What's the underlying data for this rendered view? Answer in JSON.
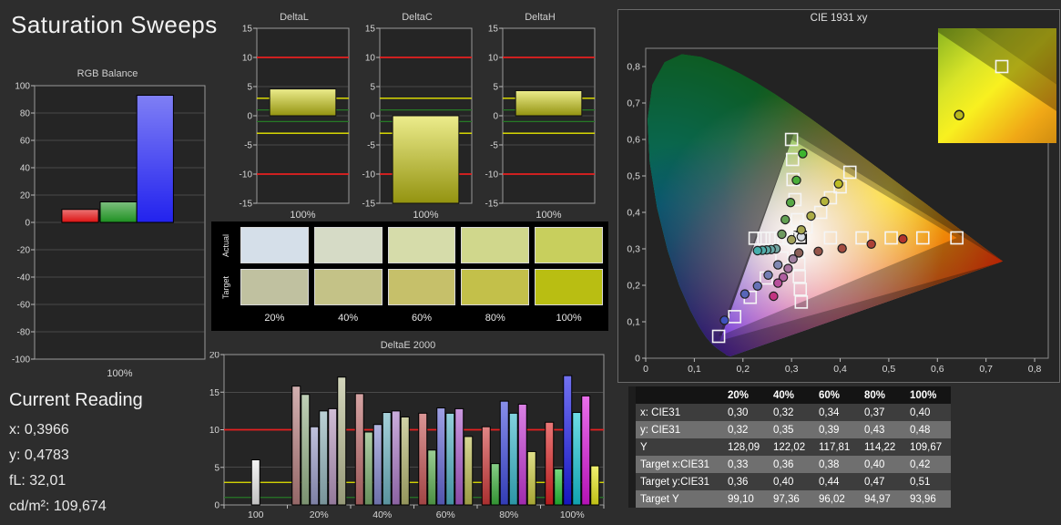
{
  "page": {
    "title": "Saturation Sweeps",
    "background": "#2d2d2d"
  },
  "current_reading": {
    "heading": "Current Reading",
    "lines": [
      "x: 0,3966",
      "y: 0,4783",
      "fL: 32,01",
      "cd/m²: 109,674"
    ]
  },
  "swatches": {
    "row_labels": [
      "Actual",
      "Target"
    ],
    "col_labels": [
      "20%",
      "40%",
      "60%",
      "80%",
      "100%"
    ],
    "actual_colors": [
      "#d5dfe9",
      "#d6dbc6",
      "#d6dcaa",
      "#d0d78c",
      "#c8cf5d"
    ],
    "target_colors": [
      "#c0c1a0",
      "#c4c287",
      "#c6c06a",
      "#c3c04a",
      "#b9be12"
    ]
  },
  "table": {
    "col_headers": [
      "",
      "20%",
      "40%",
      "60%",
      "80%",
      "100%"
    ],
    "rows": [
      {
        "label": "x: CIE31",
        "values": [
          "0,30",
          "0,32",
          "0,34",
          "0,37",
          "0,40"
        ]
      },
      {
        "label": "y: CIE31",
        "values": [
          "0,32",
          "0,35",
          "0,39",
          "0,43",
          "0,48"
        ]
      },
      {
        "label": "Y",
        "values": [
          "128,09",
          "122,02",
          "117,81",
          "114,22",
          "109,67"
        ]
      },
      {
        "label": "Target x:CIE31",
        "values": [
          "0,33",
          "0,36",
          "0,38",
          "0,40",
          "0,42"
        ]
      },
      {
        "label": "Target y:CIE31",
        "values": [
          "0,36",
          "0,40",
          "0,44",
          "0,47",
          "0,51"
        ]
      },
      {
        "label": "Target Y",
        "values": [
          "99,10",
          "97,36",
          "96,02",
          "94,97",
          "93,96"
        ]
      }
    ]
  },
  "chart_data": [
    {
      "type": "bar",
      "title": "RGB Balance",
      "xlabel": "100%",
      "ylim": [
        -100,
        100
      ],
      "ytick_step": 20,
      "categories": [
        "red",
        "green",
        "blue"
      ],
      "values": [
        9.5,
        15,
        93
      ],
      "colors": [
        "#dd1111",
        "#1e9021",
        "#2222ee"
      ]
    },
    {
      "type": "bar",
      "title": "DeltaL",
      "xlabel": "100%",
      "ylim": [
        -15,
        15
      ],
      "ytick_step": 5,
      "categories": [
        "100%"
      ],
      "values": [
        4.6
      ],
      "color": "#d8d818",
      "ref_lines": [
        {
          "y": 10,
          "color": "#e62020"
        },
        {
          "y": -10,
          "color": "#e62020"
        },
        {
          "y": 3,
          "color": "#e8e800"
        },
        {
          "y": -3,
          "color": "#e8e800"
        },
        {
          "y": 1,
          "color": "#267a26"
        },
        {
          "y": -1,
          "color": "#267a26"
        }
      ]
    },
    {
      "type": "bar",
      "title": "DeltaC",
      "xlabel": "100%",
      "ylim": [
        -15,
        15
      ],
      "ytick_step": 5,
      "categories": [
        "100%"
      ],
      "values": [
        -15
      ],
      "color": "#d8d818",
      "ref_lines": [
        {
          "y": 10,
          "color": "#e62020"
        },
        {
          "y": -10,
          "color": "#e62020"
        },
        {
          "y": 3,
          "color": "#e8e800"
        },
        {
          "y": -3,
          "color": "#e8e800"
        },
        {
          "y": 1,
          "color": "#267a26"
        },
        {
          "y": -1,
          "color": "#267a26"
        }
      ]
    },
    {
      "type": "bar",
      "title": "DeltaH",
      "xlabel": "100%",
      "ylim": [
        -15,
        15
      ],
      "ytick_step": 5,
      "categories": [
        "100%"
      ],
      "values": [
        4.3
      ],
      "color": "#d8d818",
      "ref_lines": [
        {
          "y": 10,
          "color": "#e62020"
        },
        {
          "y": -10,
          "color": "#e62020"
        },
        {
          "y": 3,
          "color": "#e8e800"
        },
        {
          "y": -3,
          "color": "#e8e800"
        },
        {
          "y": 1,
          "color": "#267a26"
        },
        {
          "y": -1,
          "color": "#267a26"
        }
      ]
    },
    {
      "type": "bar",
      "title": "DeltaE 2000",
      "ylim": [
        0,
        20
      ],
      "ytick_step": 5,
      "ref_lines": [
        {
          "y": 10,
          "color": "#e62020"
        },
        {
          "y": 3,
          "color": "#e8e800"
        },
        {
          "y": 1,
          "color": "#267a26"
        }
      ],
      "groups": [
        {
          "label": "100",
          "bars": [
            {
              "name": "white",
              "value": 6.0,
              "color": "#ececec"
            }
          ]
        },
        {
          "label": "20%",
          "bars": [
            {
              "name": "red",
              "value": 15.8,
              "color": "#b47e7e"
            },
            {
              "name": "green",
              "value": 14.7,
              "color": "#96b289"
            },
            {
              "name": "blue",
              "value": 10.4,
              "color": "#999cc8"
            },
            {
              "name": "cyan",
              "value": 12.5,
              "color": "#92b3bb"
            },
            {
              "name": "magenta",
              "value": 12.8,
              "color": "#b394bc"
            },
            {
              "name": "yellow",
              "value": 17.0,
              "color": "#b7bb92"
            }
          ]
        },
        {
          "label": "40%",
          "bars": [
            {
              "name": "red",
              "value": 14.8,
              "color": "#bc6a6a"
            },
            {
              "name": "green",
              "value": 9.7,
              "color": "#7eb070"
            },
            {
              "name": "blue",
              "value": 10.7,
              "color": "#8489ce"
            },
            {
              "name": "cyan",
              "value": 12.3,
              "color": "#6eb3c1"
            },
            {
              "name": "magenta",
              "value": 12.5,
              "color": "#aa79c5"
            },
            {
              "name": "yellow",
              "value": 11.7,
              "color": "#b3b670"
            }
          ]
        },
        {
          "label": "60%",
          "bars": [
            {
              "name": "red",
              "value": 12.2,
              "color": "#c45454"
            },
            {
              "name": "green",
              "value": 7.3,
              "color": "#5cae50"
            },
            {
              "name": "blue",
              "value": 12.9,
              "color": "#6366d3"
            },
            {
              "name": "cyan",
              "value": 12.2,
              "color": "#50b1c3"
            },
            {
              "name": "magenta",
              "value": 12.8,
              "color": "#aa59cc"
            },
            {
              "name": "yellow",
              "value": 9.1,
              "color": "#bdbd53"
            }
          ]
        },
        {
          "label": "80%",
          "bars": [
            {
              "name": "red",
              "value": 10.4,
              "color": "#ce3b3b"
            },
            {
              "name": "green",
              "value": 5.5,
              "color": "#3db23d"
            },
            {
              "name": "blue",
              "value": 13.8,
              "color": "#3d49dd"
            },
            {
              "name": "cyan",
              "value": 12.2,
              "color": "#36b6c9"
            },
            {
              "name": "magenta",
              "value": 13.4,
              "color": "#c334d3"
            },
            {
              "name": "yellow",
              "value": 7.1,
              "color": "#caca3f"
            }
          ]
        },
        {
          "label": "100%",
          "bars": [
            {
              "name": "red",
              "value": 11.0,
              "color": "#dd2323"
            },
            {
              "name": "green",
              "value": 4.8,
              "color": "#23c334"
            },
            {
              "name": "blue",
              "value": 17.2,
              "color": "#1b1be9"
            },
            {
              "name": "cyan",
              "value": 12.3,
              "color": "#15c5d5"
            },
            {
              "name": "magenta",
              "value": 14.5,
              "color": "#db17dd"
            },
            {
              "name": "yellow",
              "value": 5.2,
              "color": "#e9e919"
            }
          ]
        }
      ]
    },
    {
      "type": "scatter",
      "title": "CIE 1931 xy",
      "xlim": [
        0,
        0.828
      ],
      "ylim": [
        0,
        0.85
      ],
      "axis_tick_step": 0.1,
      "axis_tick_max": 0.8,
      "gamut_native": [
        [
          0.735,
          0.265
        ],
        [
          0.305,
          0.617
        ],
        [
          0.153,
          0.048
        ]
      ],
      "gamut_ref": [
        [
          0.64,
          0.33
        ],
        [
          0.3,
          0.6
        ],
        [
          0.15,
          0.06
        ]
      ],
      "white_point": [
        0.3127,
        0.329
      ],
      "targets": [
        {
          "x": 0.3127,
          "y": 0.329
        },
        {
          "x": 0.318,
          "y": 0.331,
          "dark": true
        },
        {
          "x": 0.38,
          "y": 0.33
        },
        {
          "x": 0.445,
          "y": 0.33
        },
        {
          "x": 0.505,
          "y": 0.33
        },
        {
          "x": 0.57,
          "y": 0.33
        },
        {
          "x": 0.64,
          "y": 0.33
        },
        {
          "x": 0.312,
          "y": 0.38
        },
        {
          "x": 0.307,
          "y": 0.435
        },
        {
          "x": 0.303,
          "y": 0.49
        },
        {
          "x": 0.302,
          "y": 0.545
        },
        {
          "x": 0.3,
          "y": 0.6
        },
        {
          "x": 0.28,
          "y": 0.275
        },
        {
          "x": 0.248,
          "y": 0.22
        },
        {
          "x": 0.215,
          "y": 0.167
        },
        {
          "x": 0.183,
          "y": 0.114
        },
        {
          "x": 0.15,
          "y": 0.06
        },
        {
          "x": 0.295,
          "y": 0.329
        },
        {
          "x": 0.278,
          "y": 0.329
        },
        {
          "x": 0.26,
          "y": 0.329
        },
        {
          "x": 0.243,
          "y": 0.329
        },
        {
          "x": 0.225,
          "y": 0.329
        },
        {
          "x": 0.313,
          "y": 0.294
        },
        {
          "x": 0.315,
          "y": 0.259
        },
        {
          "x": 0.316,
          "y": 0.224
        },
        {
          "x": 0.318,
          "y": 0.189
        },
        {
          "x": 0.32,
          "y": 0.154
        },
        {
          "x": 0.33,
          "y": 0.36
        },
        {
          "x": 0.36,
          "y": 0.4
        },
        {
          "x": 0.38,
          "y": 0.44
        },
        {
          "x": 0.4,
          "y": 0.47
        },
        {
          "x": 0.42,
          "y": 0.51
        }
      ],
      "measured": [
        {
          "x": 0.32,
          "y": 0.333,
          "c": "#d8dde6"
        },
        {
          "x": 0.315,
          "y": 0.289,
          "c": "#8a6058"
        },
        {
          "x": 0.355,
          "y": 0.293,
          "c": "#96554a"
        },
        {
          "x": 0.404,
          "y": 0.301,
          "c": "#a44c40"
        },
        {
          "x": 0.464,
          "y": 0.313,
          "c": "#ac4036"
        },
        {
          "x": 0.529,
          "y": 0.327,
          "c": "#b2342c"
        },
        {
          "x": 0.28,
          "y": 0.34,
          "c": "#6e9a60"
        },
        {
          "x": 0.287,
          "y": 0.38,
          "c": "#63a052"
        },
        {
          "x": 0.298,
          "y": 0.427,
          "c": "#57a846"
        },
        {
          "x": 0.31,
          "y": 0.488,
          "c": "#4aae3a"
        },
        {
          "x": 0.323,
          "y": 0.561,
          "c": "#3cb42e"
        },
        {
          "x": 0.272,
          "y": 0.256,
          "c": "#8088b2"
        },
        {
          "x": 0.252,
          "y": 0.228,
          "c": "#747eb4"
        },
        {
          "x": 0.23,
          "y": 0.198,
          "c": "#6671b6"
        },
        {
          "x": 0.204,
          "y": 0.176,
          "c": "#5866b8"
        },
        {
          "x": 0.162,
          "y": 0.104,
          "c": "#4052bc"
        },
        {
          "x": 0.268,
          "y": 0.3,
          "c": "#74a6a2"
        },
        {
          "x": 0.258,
          "y": 0.298,
          "c": "#68a8a6"
        },
        {
          "x": 0.249,
          "y": 0.297,
          "c": "#5caaa8"
        },
        {
          "x": 0.24,
          "y": 0.296,
          "c": "#50acaa"
        },
        {
          "x": 0.23,
          "y": 0.295,
          "c": "#44aeac"
        },
        {
          "x": 0.303,
          "y": 0.272,
          "c": "#a080a0"
        },
        {
          "x": 0.293,
          "y": 0.246,
          "c": "#a872a0"
        },
        {
          "x": 0.283,
          "y": 0.222,
          "c": "#b060a0"
        },
        {
          "x": 0.272,
          "y": 0.206,
          "c": "#b8509c"
        },
        {
          "x": 0.263,
          "y": 0.17,
          "c": "#c23482"
        },
        {
          "x": 0.3,
          "y": 0.325,
          "c": "#a0a05a"
        },
        {
          "x": 0.32,
          "y": 0.352,
          "c": "#a6a650"
        },
        {
          "x": 0.34,
          "y": 0.39,
          "c": "#acac46"
        },
        {
          "x": 0.368,
          "y": 0.43,
          "c": "#b4b43a"
        },
        {
          "x": 0.3966,
          "y": 0.4783,
          "c": "#bcbc26"
        }
      ],
      "inset": {
        "x_range": [
          0.385,
          0.45
        ],
        "y_range": [
          0.46,
          0.535
        ],
        "target": {
          "x": 0.42,
          "y": 0.51
        },
        "measured": {
          "x": 0.3966,
          "y": 0.4783,
          "color": "#b8b81c"
        }
      }
    }
  ]
}
